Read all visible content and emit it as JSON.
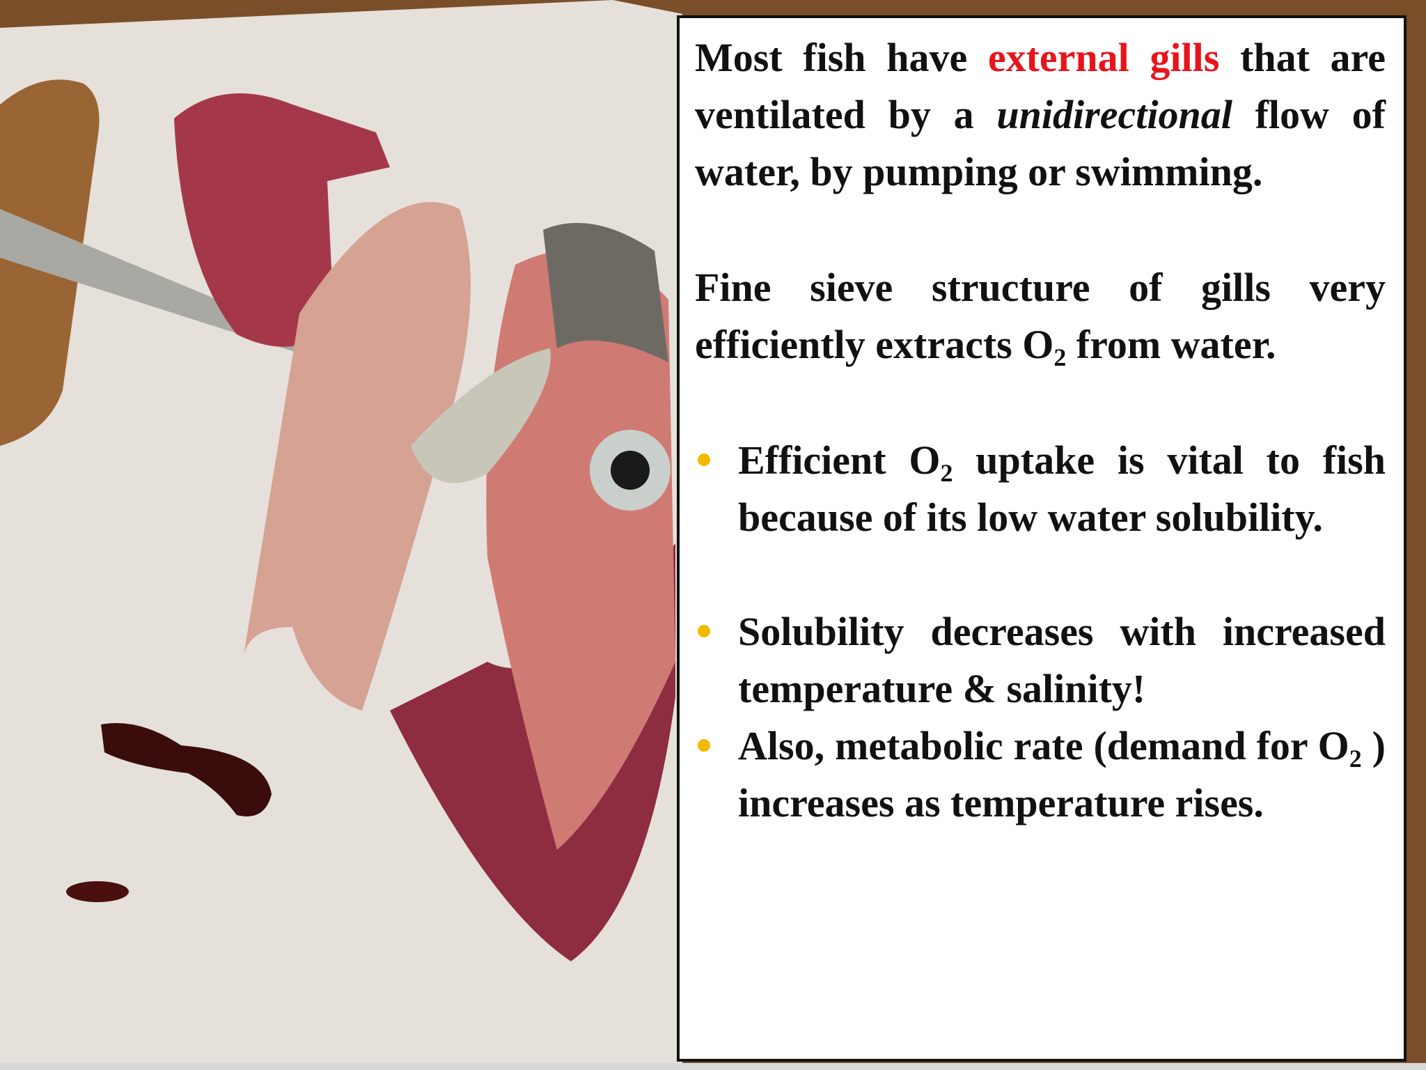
{
  "slide": {
    "paragraphs": [
      {
        "runs": [
          {
            "text": "Most fish have "
          },
          {
            "text": "external gills",
            "color": "#e8141b"
          },
          {
            "text": " that are ventilated by a "
          },
          {
            "text": "unidirectional",
            "style": "italic"
          },
          {
            "text": " flow of water, by pumping or swimming."
          }
        ]
      },
      {
        "runs": [
          {
            "text": "Fine sieve structure of gills very efficiently extracts O"
          },
          {
            "text": "2",
            "sub": true
          },
          {
            "text": " from water."
          }
        ]
      }
    ],
    "bullets": [
      {
        "runs": [
          {
            "text": "Efficient O"
          },
          {
            "text": "2",
            "sub": true
          },
          {
            "text": " uptake is vital to fish because of its low water solubility."
          }
        ]
      },
      {
        "runs": [
          {
            "text": "Solubility decreases with increased temperature & salinity!"
          }
        ]
      },
      {
        "runs": [
          {
            "text": "Also, metabolic rate (demand for O"
          },
          {
            "text": "2",
            "sub": true
          },
          {
            "text": " ) increases as temperature rises."
          }
        ]
      }
    ],
    "bullet_color": "#f5b800"
  }
}
